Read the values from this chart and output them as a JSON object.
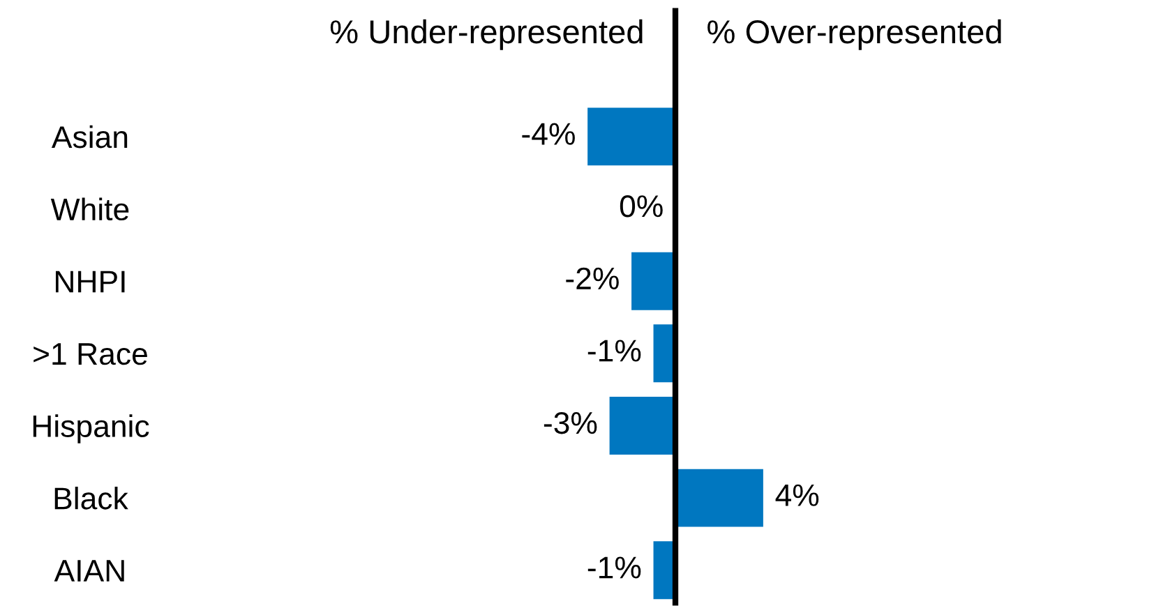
{
  "chart_data": {
    "type": "bar",
    "orientation": "horizontal",
    "categories": [
      "Asian",
      "White",
      "NHPI",
      ">1 Race",
      "Hispanic",
      "Black",
      "AIAN"
    ],
    "values": [
      -4,
      0,
      -2,
      -1,
      -3,
      4,
      -1
    ],
    "color": "#0077c0",
    "data_labels": true,
    "value_labels": [
      "-4%",
      "0%",
      "-2%",
      "-1%",
      "-3%",
      "4%",
      "-1%"
    ],
    "annotations": [
      "% Under-represented",
      "% Over-represented"
    ],
    "grid": false
  }
}
